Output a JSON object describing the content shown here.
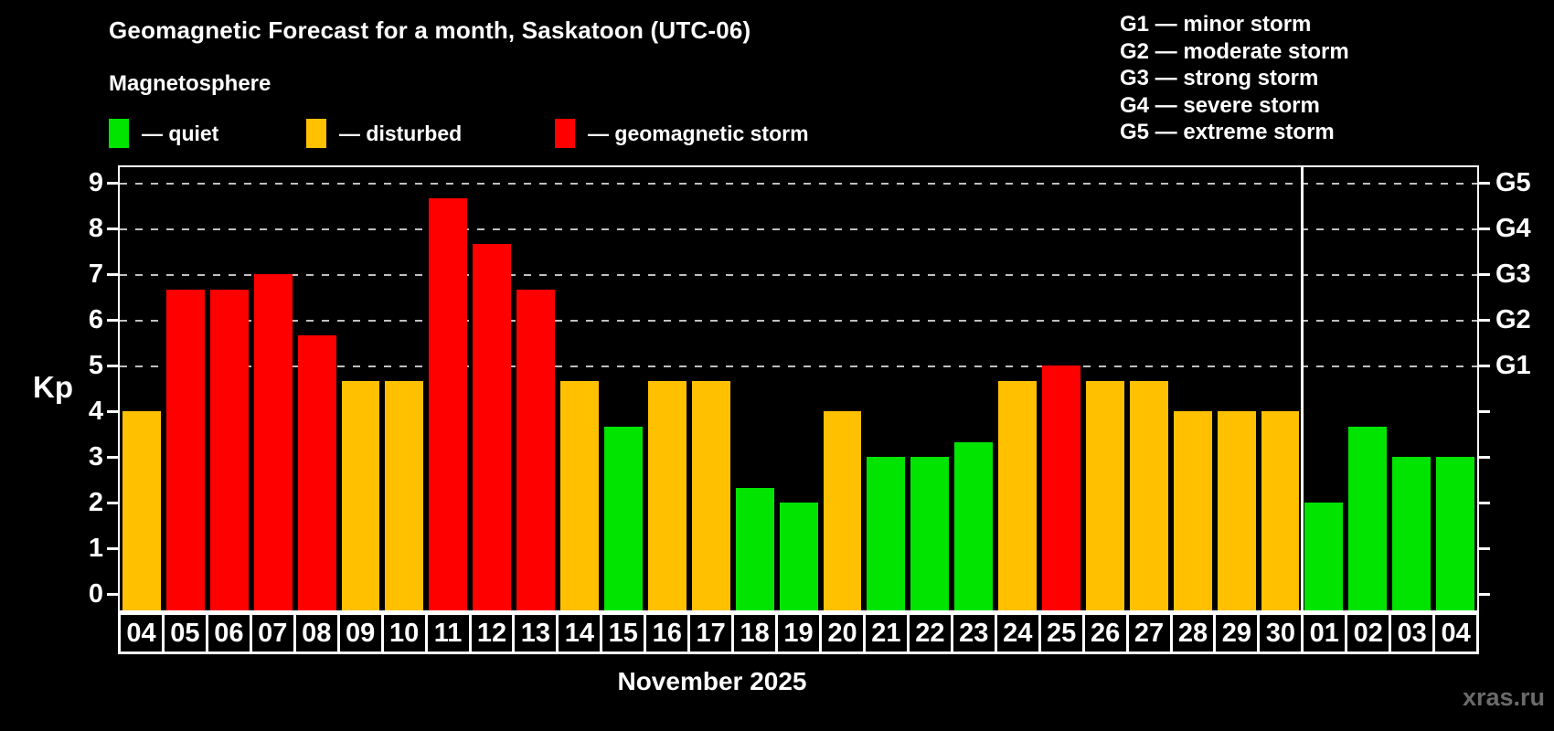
{
  "header": {
    "title": "Geomagnetic Forecast for a month, Saskatoon (UTC-06)",
    "subtitle": "Magnetosphere"
  },
  "legend": {
    "items": [
      {
        "id": "quiet",
        "label": "— quiet"
      },
      {
        "id": "disturbed",
        "label": "— disturbed"
      },
      {
        "id": "storm",
        "label": "— geomagnetic storm"
      }
    ]
  },
  "storm_legend": {
    "lines": [
      "G1 — minor storm",
      "G2 — moderate storm",
      "G3 — strong storm",
      "G4 — severe storm",
      "G5 — extreme storm"
    ]
  },
  "axes": {
    "kp_label": "Kp",
    "y_ticks": [
      0,
      1,
      2,
      3,
      4,
      5,
      6,
      7,
      8,
      9
    ],
    "right_labels": [
      {
        "label": "G1",
        "kp": 5
      },
      {
        "label": "G2",
        "kp": 6
      },
      {
        "label": "G3",
        "kp": 7
      },
      {
        "label": "G4",
        "kp": 8
      },
      {
        "label": "G5",
        "kp": 9
      }
    ]
  },
  "footer": {
    "month_label": "November 2025",
    "watermark": "xras.ru"
  },
  "chart_data": {
    "type": "bar",
    "title": "Geomagnetic Forecast for a month, Saskatoon (UTC-06)",
    "ylabel": "Kp",
    "ylim": [
      -0.36,
      9.34
    ],
    "gridlines_at": [
      5,
      6,
      7,
      8,
      9
    ],
    "legend_position": "top",
    "colors": {
      "quiet": "#00e400",
      "disturbed": "#ffc000",
      "storm": "#ff0000"
    },
    "gridline_color": "#c0c0c0",
    "watermark_color": "#6b6b6b",
    "separator_after_index": 26,
    "days": [
      {
        "label": "04",
        "value": 4.0,
        "status": "disturbed"
      },
      {
        "label": "05",
        "value": 6.67,
        "status": "storm"
      },
      {
        "label": "06",
        "value": 6.67,
        "status": "storm"
      },
      {
        "label": "07",
        "value": 7.0,
        "status": "storm"
      },
      {
        "label": "08",
        "value": 5.67,
        "status": "storm"
      },
      {
        "label": "09",
        "value": 4.67,
        "status": "disturbed"
      },
      {
        "label": "10",
        "value": 4.67,
        "status": "disturbed"
      },
      {
        "label": "11",
        "value": 8.67,
        "status": "storm"
      },
      {
        "label": "12",
        "value": 7.67,
        "status": "storm"
      },
      {
        "label": "13",
        "value": 6.67,
        "status": "storm"
      },
      {
        "label": "14",
        "value": 4.67,
        "status": "disturbed"
      },
      {
        "label": "15",
        "value": 3.67,
        "status": "quiet"
      },
      {
        "label": "16",
        "value": 4.67,
        "status": "disturbed"
      },
      {
        "label": "17",
        "value": 4.67,
        "status": "disturbed"
      },
      {
        "label": "18",
        "value": 2.33,
        "status": "quiet"
      },
      {
        "label": "19",
        "value": 2.0,
        "status": "quiet"
      },
      {
        "label": "20",
        "value": 4.0,
        "status": "disturbed"
      },
      {
        "label": "21",
        "value": 3.0,
        "status": "quiet"
      },
      {
        "label": "22",
        "value": 3.0,
        "status": "quiet"
      },
      {
        "label": "23",
        "value": 3.33,
        "status": "quiet"
      },
      {
        "label": "24",
        "value": 4.67,
        "status": "disturbed"
      },
      {
        "label": "25",
        "value": 5.0,
        "status": "storm"
      },
      {
        "label": "26",
        "value": 4.67,
        "status": "disturbed"
      },
      {
        "label": "27",
        "value": 4.67,
        "status": "disturbed"
      },
      {
        "label": "28",
        "value": 4.0,
        "status": "disturbed"
      },
      {
        "label": "29",
        "value": 4.0,
        "status": "disturbed"
      },
      {
        "label": "30",
        "value": 4.0,
        "status": "disturbed"
      },
      {
        "label": "01",
        "value": 2.0,
        "status": "quiet"
      },
      {
        "label": "02",
        "value": 3.67,
        "status": "quiet"
      },
      {
        "label": "03",
        "value": 3.0,
        "status": "quiet"
      },
      {
        "label": "04",
        "value": 3.0,
        "status": "quiet"
      }
    ]
  }
}
